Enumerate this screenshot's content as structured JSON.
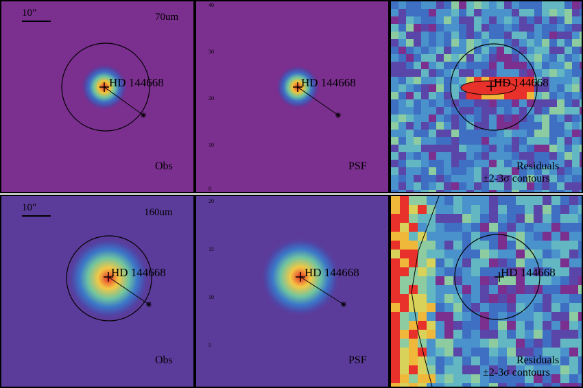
{
  "figure": {
    "target_name": "HD 144668",
    "scale_bar_label": "10\"",
    "rows": [
      {
        "band": "70um",
        "obs_label": "Obs",
        "psf_label": "PSF",
        "residual_label": "Residuals",
        "contour_label": "±2-3σ contours",
        "axis_ticks": [
          "40",
          "30",
          "20",
          "10",
          "0"
        ]
      },
      {
        "band": "160um",
        "obs_label": "Obs",
        "psf_label": "PSF",
        "residual_label": "Residuals",
        "contour_label": "±2-3σ contours",
        "axis_ticks": [
          "20",
          "15",
          "10",
          "5"
        ]
      }
    ]
  },
  "colors": {
    "background_obs": "#7a2d8c",
    "background_160": "#5d3a9a",
    "peak": "#e8312a",
    "contour": "#000000"
  }
}
